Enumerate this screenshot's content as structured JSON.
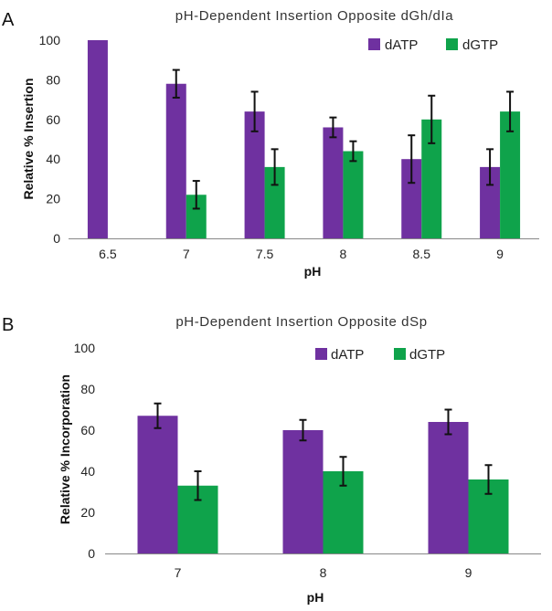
{
  "colors": {
    "dATP": "#6f31a0",
    "dGTP": "#0fa34b",
    "axis": "#888888",
    "error": "#111111"
  },
  "chart_data": [
    {
      "panel": "A",
      "type": "bar",
      "title": "pH-Dependent Insertion Opposite dGh/dIa",
      "xlabel": "pH",
      "ylabel": "Relative % Insertion",
      "ylim": [
        0,
        100
      ],
      "yticks": [
        "0",
        "20",
        "40",
        "60",
        "80",
        "100"
      ],
      "categories": [
        "6.5",
        "7",
        "7.5",
        "8",
        "8.5",
        "9"
      ],
      "legend_placement": "top-right",
      "grid": false,
      "series": [
        {
          "name": "dATP",
          "values": [
            100,
            78,
            64,
            56,
            40,
            36
          ],
          "errors": [
            0,
            7,
            10,
            5,
            12,
            9
          ]
        },
        {
          "name": "dGTP",
          "values": [
            0,
            22,
            36,
            44,
            60,
            64
          ],
          "errors": [
            0,
            7,
            9,
            5,
            12,
            10
          ]
        }
      ]
    },
    {
      "panel": "B",
      "type": "bar",
      "title": "pH-Dependent Insertion Opposite dSp",
      "xlabel": "pH",
      "ylabel": "Relative % Incorporation",
      "ylim": [
        0,
        100
      ],
      "yticks": [
        "0",
        "20",
        "40",
        "60",
        "80",
        "100"
      ],
      "categories": [
        "7",
        "8",
        "9"
      ],
      "legend_placement": "top-right",
      "grid": false,
      "series": [
        {
          "name": "dATP",
          "values": [
            67,
            60,
            64
          ],
          "errors": [
            6,
            5,
            6
          ]
        },
        {
          "name": "dGTP",
          "values": [
            33,
            40,
            36
          ],
          "errors": [
            7,
            7,
            7
          ]
        }
      ]
    }
  ]
}
